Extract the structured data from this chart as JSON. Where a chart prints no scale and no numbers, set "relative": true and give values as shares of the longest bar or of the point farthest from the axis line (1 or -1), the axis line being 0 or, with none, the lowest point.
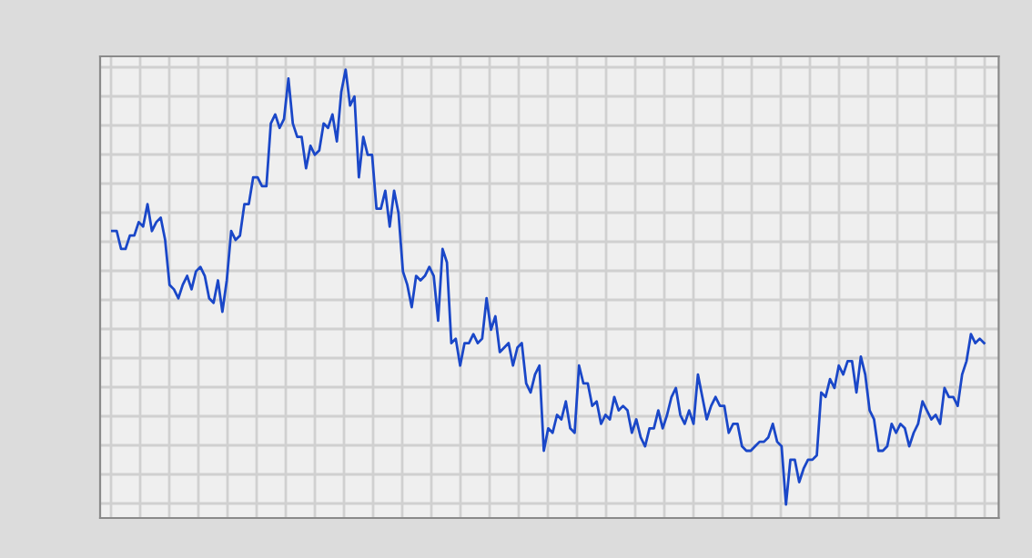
{
  "chart_data": {
    "type": "line",
    "relative": true,
    "grid": true,
    "marker": "none",
    "line_style": "solid",
    "categories": [
      null,
      null,
      null,
      null,
      null,
      null,
      null,
      null,
      null,
      null,
      null,
      null,
      null,
      null,
      null,
      null,
      null,
      null,
      null,
      null,
      null,
      null,
      null,
      null,
      null,
      null,
      null,
      null,
      null,
      null,
      null,
      null,
      null,
      null,
      null,
      null,
      null,
      null,
      null,
      null,
      null,
      null,
      null,
      null,
      null,
      null,
      null,
      null,
      null,
      null,
      null,
      null,
      null,
      null,
      null,
      null,
      null,
      null,
      null,
      null,
      null,
      null,
      null,
      null,
      null,
      null,
      null,
      null,
      null,
      null,
      null,
      null,
      null,
      null,
      null,
      null,
      null,
      null,
      null,
      null,
      null,
      null,
      null,
      null,
      null,
      null,
      null,
      null,
      null,
      null,
      null,
      null,
      null,
      null,
      null,
      null,
      null,
      null,
      null,
      null,
      null,
      null,
      null,
      null,
      null,
      null,
      null,
      null,
      null,
      null,
      null,
      null,
      null,
      null,
      null,
      null,
      null,
      null,
      null,
      null,
      null,
      null,
      null,
      null,
      null,
      null,
      null,
      null,
      null,
      null,
      null,
      null,
      null,
      null,
      null,
      null,
      null,
      null,
      null,
      null,
      null,
      null,
      null,
      null,
      null,
      null,
      null,
      null,
      null,
      null,
      null,
      null,
      null,
      null,
      null,
      null,
      null,
      null,
      null,
      null,
      null,
      null,
      null,
      null,
      null,
      null,
      null,
      null,
      null,
      null,
      null,
      null,
      null,
      null,
      null,
      null,
      null,
      null,
      null,
      null,
      null,
      null,
      null,
      null,
      null,
      null,
      null,
      null,
      null,
      null,
      null,
      null,
      null,
      null,
      null,
      null,
      null,
      null,
      null
    ],
    "series": [
      {
        "color": "#1a47c8",
        "values": [
          0.64,
          0.64,
          0.6,
          0.6,
          0.63,
          0.63,
          0.66,
          0.65,
          0.7,
          0.64,
          0.66,
          0.67,
          0.62,
          0.52,
          0.51,
          0.49,
          0.52,
          0.54,
          0.51,
          0.55,
          0.56,
          0.54,
          0.49,
          0.48,
          0.53,
          0.46,
          0.53,
          0.64,
          0.62,
          0.63,
          0.7,
          0.7,
          0.76,
          0.76,
          0.74,
          0.74,
          0.88,
          0.9,
          0.87,
          0.89,
          0.98,
          0.88,
          0.85,
          0.85,
          0.78,
          0.83,
          0.81,
          0.82,
          0.88,
          0.87,
          0.9,
          0.84,
          0.95,
          1.0,
          0.92,
          0.94,
          0.76,
          0.85,
          0.81,
          0.81,
          0.69,
          0.69,
          0.73,
          0.65,
          0.73,
          0.68,
          0.55,
          0.52,
          0.47,
          0.54,
          0.53,
          0.54,
          0.56,
          0.54,
          0.44,
          0.6,
          0.57,
          0.39,
          0.4,
          0.34,
          0.39,
          0.39,
          0.41,
          0.39,
          0.4,
          0.49,
          0.42,
          0.45,
          0.37,
          0.38,
          0.39,
          0.34,
          0.38,
          0.39,
          0.3,
          0.28,
          0.32,
          0.34,
          0.15,
          0.2,
          0.19,
          0.23,
          0.22,
          0.26,
          0.2,
          0.19,
          0.34,
          0.3,
          0.3,
          0.25,
          0.26,
          0.21,
          0.23,
          0.22,
          0.27,
          0.24,
          0.25,
          0.24,
          0.19,
          0.22,
          0.18,
          0.16,
          0.2,
          0.2,
          0.24,
          0.2,
          0.23,
          0.27,
          0.29,
          0.23,
          0.21,
          0.24,
          0.21,
          0.32,
          0.27,
          0.22,
          0.25,
          0.27,
          0.25,
          0.25,
          0.19,
          0.21,
          0.21,
          0.16,
          0.15,
          0.15,
          0.16,
          0.17,
          0.17,
          0.18,
          0.21,
          0.17,
          0.16,
          0.03,
          0.13,
          0.13,
          0.08,
          0.11,
          0.13,
          0.13,
          0.14,
          0.28,
          0.27,
          0.31,
          0.29,
          0.34,
          0.32,
          0.35,
          0.35,
          0.28,
          0.36,
          0.32,
          0.24,
          0.22,
          0.15,
          0.15,
          0.16,
          0.21,
          0.19,
          0.21,
          0.2,
          0.16,
          0.19,
          0.21,
          0.26,
          0.24,
          0.22,
          0.23,
          0.21,
          0.29,
          0.27,
          0.27,
          0.25,
          0.32,
          0.35,
          0.41,
          0.39,
          0.4,
          0.39
        ]
      }
    ]
  }
}
